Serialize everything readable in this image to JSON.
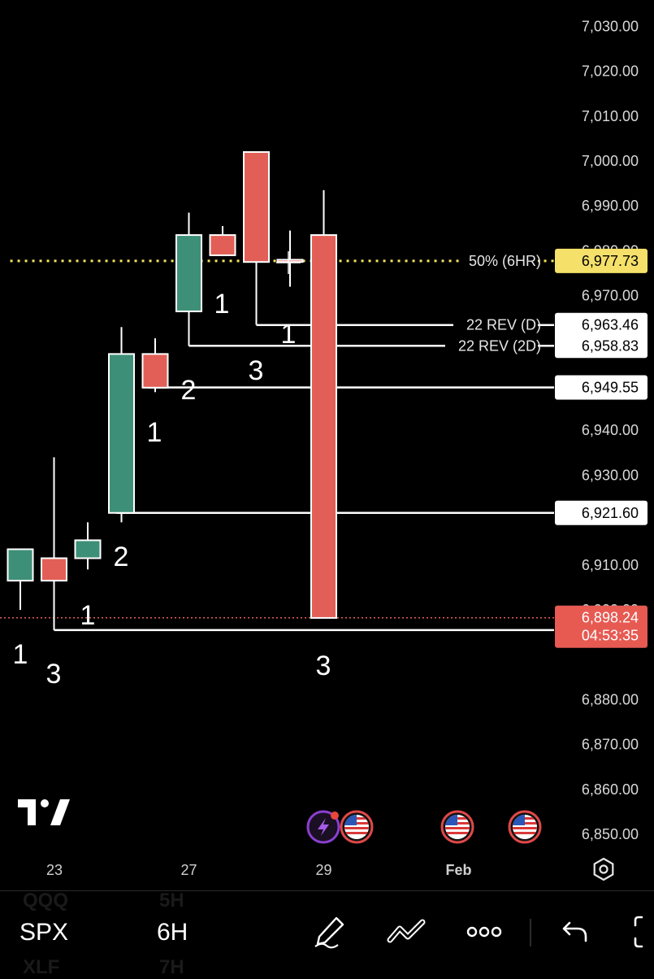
{
  "chart_data": {
    "type": "candlestick",
    "symbol": "SPX",
    "interval": "6H",
    "y_ticks": [
      "7,030.00",
      "7,020.00",
      "7,010.00",
      "7,000.00",
      "6,990.00",
      "6,980.00",
      "6,970.00",
      "6,940.00",
      "6,930.00",
      "6,910.00",
      "6,900.00",
      "6,880.00",
      "6,870.00",
      "6,860.00",
      "6,850.00"
    ],
    "y_tick_values": [
      7030,
      7020,
      7010,
      7000,
      6990,
      6980,
      6970,
      6940,
      6930,
      6910,
      6900,
      6880,
      6870,
      6860,
      6850
    ],
    "ylim": [
      6844,
      7036
    ],
    "x_labels": [
      {
        "text": "23",
        "index": 1.0,
        "bold": false
      },
      {
        "text": "27",
        "index": 5.0,
        "bold": false
      },
      {
        "text": "29",
        "index": 9.0,
        "bold": false
      },
      {
        "text": "Feb",
        "index": 13.0,
        "bold": true
      }
    ],
    "candles": [
      {
        "i": 0,
        "open": 6906.5,
        "high": 6913.5,
        "low": 6900.0,
        "close": 6913.5,
        "label": "1"
      },
      {
        "i": 1,
        "open": 6911.5,
        "high": 6934.0,
        "low": 6895.5,
        "close": 6906.5,
        "label": "3"
      },
      {
        "i": 2,
        "open": 6911.5,
        "high": 6919.5,
        "low": 6909.0,
        "close": 6915.5,
        "label": "2"
      },
      {
        "i": 2.5,
        "open": null,
        "high": null,
        "low": null,
        "close": null,
        "label": "1"
      },
      {
        "i": 3,
        "open": 6921.6,
        "high": 6963.0,
        "low": 6919.5,
        "close": 6957.0,
        "label": "1"
      },
      {
        "i": 4,
        "open": 6957.0,
        "high": 6960.5,
        "low": 6948.5,
        "close": 6949.5,
        "label": "2"
      },
      {
        "i": 5,
        "open": 6966.5,
        "high": 6988.5,
        "low": 6958.8,
        "close": 6983.5,
        "label": "1"
      },
      {
        "i": 6,
        "open": 6983.5,
        "high": 6985.5,
        "low": 6979.0,
        "close": 6979.0,
        "label": ""
      },
      {
        "i": 7,
        "open": 7002.0,
        "high": 7002.0,
        "low": 6963.5,
        "close": 6977.5,
        "label": "3"
      },
      {
        "i": 7.5,
        "open": null,
        "high": null,
        "low": null,
        "close": null,
        "label": "1"
      },
      {
        "i": 8,
        "open": 6978.0,
        "high": 6984.5,
        "low": 6972.0,
        "close": 6977.5,
        "label": ""
      },
      {
        "i": 9,
        "open": 6983.5,
        "high": 6993.5,
        "low": 6898.2,
        "close": 6898.2,
        "label": "3"
      }
    ],
    "levels": [
      {
        "price": 6977.73,
        "label": "50% (6HR)",
        "value": "6,977.73",
        "style": "dotted",
        "color": "#f2e35a",
        "tag_bg": "#f5e06a",
        "tag_fg": "#000000",
        "start_i": -0.3
      },
      {
        "price": 6963.46,
        "label": "22 REV (D)",
        "value": "6,963.46",
        "style": "solid",
        "color": "#ffffff",
        "tag_bg": "#ffffff",
        "tag_fg": "#000000",
        "start_i": 7.0
      },
      {
        "price": 6958.83,
        "label": "22 REV (2D)",
        "value": "6,958.83",
        "style": "solid",
        "color": "#ffffff",
        "tag_bg": "#ffffff",
        "tag_fg": "#000000",
        "start_i": 5.0
      },
      {
        "price": 6949.55,
        "label": "",
        "value": "6,949.55",
        "style": "solid",
        "color": "#ffffff",
        "tag_bg": "#ffffff",
        "tag_fg": "#000000",
        "start_i": 3.8
      },
      {
        "price": 6921.6,
        "label": "",
        "value": "6,921.60",
        "style": "solid",
        "color": "#ffffff",
        "tag_bg": "#ffffff",
        "tag_fg": "#000000",
        "start_i": 2.85
      },
      {
        "price": 6895.5,
        "label": "",
        "value": "6,895.50",
        "style": "solid",
        "color": "#ffffff",
        "tag_bg": "#ffffff",
        "tag_fg": "#000000",
        "start_i": 1.0
      }
    ],
    "last_price": {
      "value": "6,898.24",
      "countdown": "04:53:35",
      "price": 6898.24,
      "tag_bg": "#e65a52"
    },
    "colors": {
      "up": "#3e8f77",
      "down": "#e25f57",
      "wick": "#ffffff"
    }
  },
  "bottom_bar": {
    "symbol": "SPX",
    "interval": "6H",
    "ghost_top_symbol": "QQQ",
    "ghost_top_interval": "5H",
    "ghost_bottom_symbol": "XLF",
    "ghost_bottom_interval": "7H"
  },
  "icons": [
    "tradingview-logo-icon",
    "lightning-event-icon",
    "us-flag-icon",
    "settings-icon",
    "pencil-icon",
    "trendline-icon",
    "more-icon",
    "undo-icon",
    "fullscreen-icon"
  ]
}
